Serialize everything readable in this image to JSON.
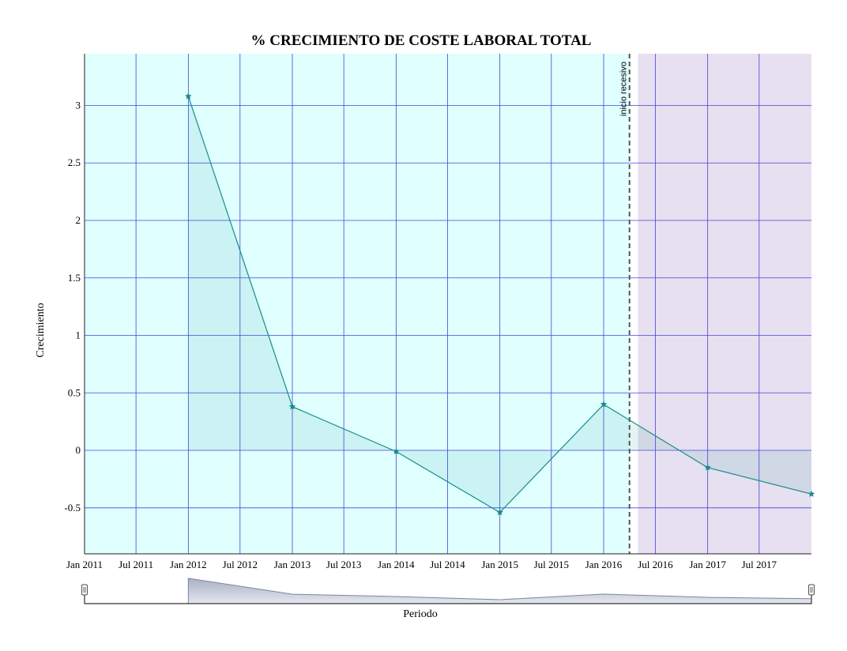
{
  "chart_data": {
    "type": "line",
    "title": "% CRECIMIENTO DE COSTE LABORAL TOTAL",
    "xlabel": "Periodo",
    "ylabel": "Crecimiento",
    "x": [
      "2012-01-01",
      "2013-01-01",
      "2014-01-01",
      "2015-01-01",
      "2016-01-01",
      "2017-01-01",
      "2018-01-01"
    ],
    "series": [
      {
        "values": [
          3.08,
          0.38,
          -0.01,
          -0.54,
          0.4,
          -0.15,
          -0.38
        ]
      }
    ],
    "xlim": [
      "2011-01-01",
      "2018-01-01"
    ],
    "ylim": [
      -0.9,
      3.45
    ],
    "yticks": [
      3,
      2.5,
      2,
      1.5,
      1,
      0.5,
      0,
      -0.5
    ],
    "yticklabels": [
      "3",
      "2.5",
      "2",
      "1.5",
      "1",
      "0.5",
      "0",
      "-0.5"
    ],
    "xticks": [
      "2011-01-01",
      "2011-07-01",
      "2012-01-01",
      "2012-07-01",
      "2013-01-01",
      "2013-07-01",
      "2014-01-01",
      "2014-07-01",
      "2015-01-01",
      "2015-07-01",
      "2016-01-01",
      "2016-07-01",
      "2017-01-01",
      "2017-07-01"
    ],
    "xticklabels": [
      "Jan 2011",
      "Jul 2011",
      "Jan 2012",
      "Jul 2012",
      "Jan 2013",
      "Jul 2013",
      "Jan 2014",
      "Jul 2014",
      "Jan 2015",
      "Jul 2015",
      "Jan 2016",
      "Jul 2016",
      "Jan 2017",
      "Jul 2017"
    ],
    "grid": true,
    "annotations": [
      {
        "label": "inicio recesivo",
        "x": "2016-04-01",
        "style": "dashed"
      }
    ],
    "bands": [
      {
        "from": "2011-01-01",
        "to": "2016-04-01",
        "color": "#e0ffff"
      },
      {
        "from": "2016-05-01",
        "to": "2018-01-01",
        "color": "#e6e0f0"
      }
    ],
    "colors": {
      "line": "#178c8c",
      "grid": "#4444dd",
      "navigator_fill": "#a9b3c7"
    }
  }
}
